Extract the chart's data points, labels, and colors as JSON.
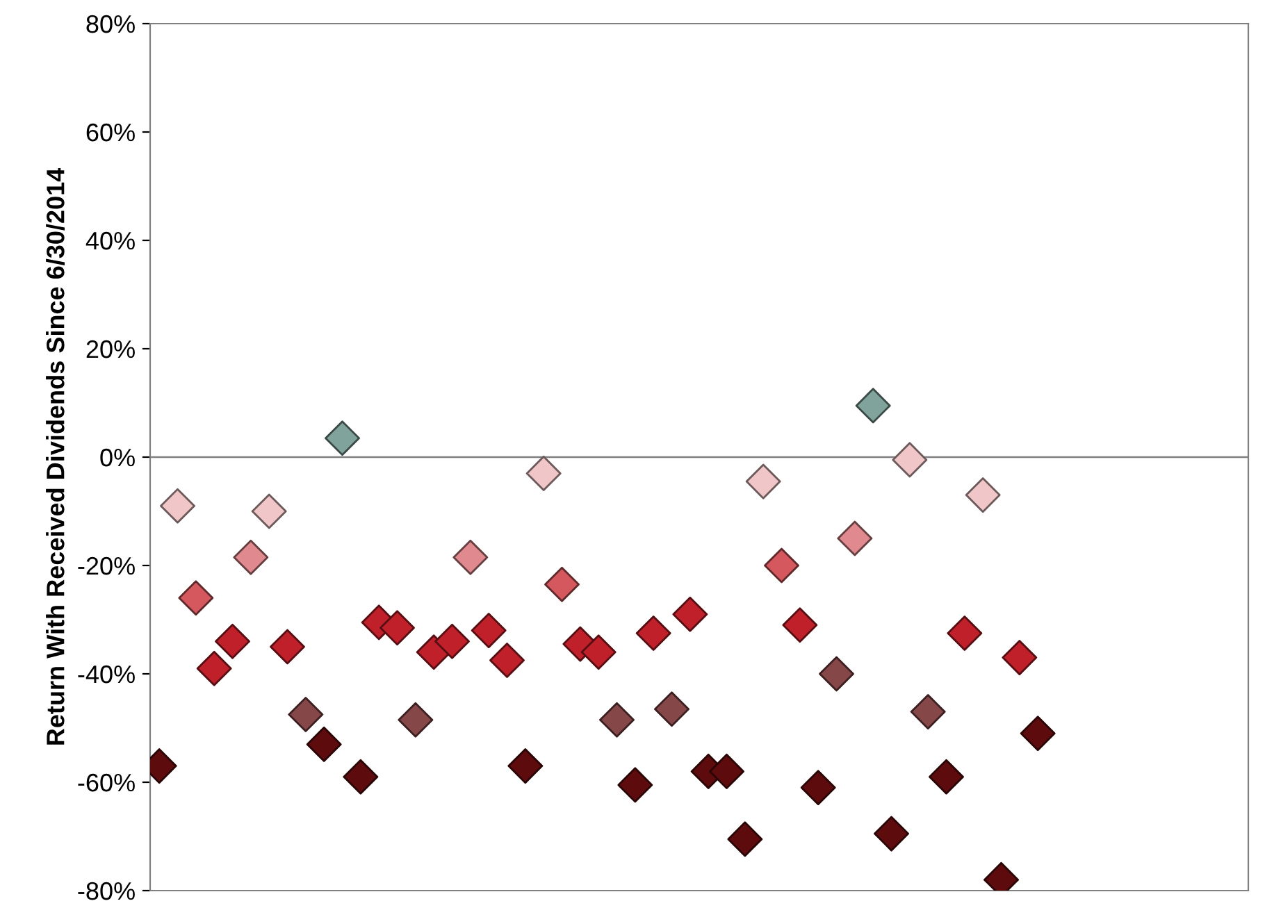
{
  "chart_data": {
    "type": "scatter",
    "ylabel": "Return With Received Dividends Since 6/30/2014",
    "categories": [
      null,
      null,
      null,
      null,
      null,
      null,
      null,
      null,
      null,
      null,
      null,
      null,
      null,
      null,
      null,
      null,
      null,
      null,
      null,
      null,
      null,
      null,
      null,
      null,
      null,
      null,
      null,
      null,
      null,
      null,
      null,
      null,
      null,
      null,
      null,
      null,
      null,
      null,
      null,
      null,
      null,
      null,
      null,
      null,
      null,
      null,
      null,
      null,
      null,
      null,
      null,
      null,
      null,
      null,
      null,
      null,
      null,
      null,
      null,
      null
    ],
    "values": [
      -57,
      -9,
      -26,
      -39,
      -34,
      -18.5,
      -10,
      -35,
      -47.5,
      -53,
      3.5,
      -59,
      -30.5,
      -31.5,
      -48.5,
      -36,
      -34,
      -18.5,
      -32,
      -37.5,
      -57,
      -3,
      -23.5,
      -34.5,
      -36,
      -48.5,
      -60.5,
      -32.5,
      -46.5,
      -29,
      -58,
      -58,
      -70.5,
      -4.5,
      -20,
      -31,
      -61,
      -40,
      -15,
      9.5,
      -69.5,
      -0.5,
      -47,
      -59,
      -32.5,
      -7,
      -78,
      -37,
      -51,
      null,
      null,
      null,
      null,
      null,
      null,
      null,
      null,
      null,
      null,
      null
    ],
    "colors": [
      "#5e0b0e",
      "#f0c6c8",
      "#d4585e",
      "#c0202a",
      "#c0202a",
      "#e08a8f",
      "#f0c6c8",
      "#c0202a",
      "#864749",
      "#5e0b0e",
      "#80a39b",
      "#5e0b0e",
      "#c0202a",
      "#c0202a",
      "#864749",
      "#c0202a",
      "#c0202a",
      "#e08a8f",
      "#c0202a",
      "#c0202a",
      "#5e0b0e",
      "#f0c6c8",
      "#d4585e",
      "#c0202a",
      "#c0202a",
      "#864749",
      "#5e0b0e",
      "#c0202a",
      "#864749",
      "#c0202a",
      "#5e0b0e",
      "#5e0b0e",
      "#5e0b0e",
      "#f0c6c8",
      "#d4585e",
      "#c0202a",
      "#5e0b0e",
      "#864749",
      "#e08a8f",
      "#80a39b",
      "#5e0b0e",
      "#f0c6c8",
      "#864749",
      "#5e0b0e",
      "#c0202a",
      "#f0c6c8",
      "#5e0b0e",
      "#c0202a",
      "#5e0b0e",
      "#5e0b0e",
      "#5e0b0e",
      "#5e0b0e",
      "#5e0b0e",
      "#5e0b0e",
      "#5e0b0e",
      "#5e0b0e",
      "#5e0b0e",
      "#5e0b0e",
      "#5e0b0e",
      "#5e0b0e"
    ],
    "marker": "diamond",
    "ylim": [
      -80,
      80
    ],
    "yticks": [
      {
        "value": -80,
        "label": "-80%"
      },
      {
        "value": -60,
        "label": "-60%"
      },
      {
        "value": -40,
        "label": "-40%"
      },
      {
        "value": -20,
        "label": "-20%"
      },
      {
        "value": 0,
        "label": "0%"
      },
      {
        "value": 20,
        "label": "20%"
      },
      {
        "value": 40,
        "label": "40%"
      },
      {
        "value": 60,
        "label": "60%"
      },
      {
        "value": 80,
        "label": "80%"
      }
    ],
    "ref_lines": [
      {
        "axis": "y",
        "value": 0,
        "color": "#808080"
      }
    ],
    "tick_labels": "y"
  }
}
